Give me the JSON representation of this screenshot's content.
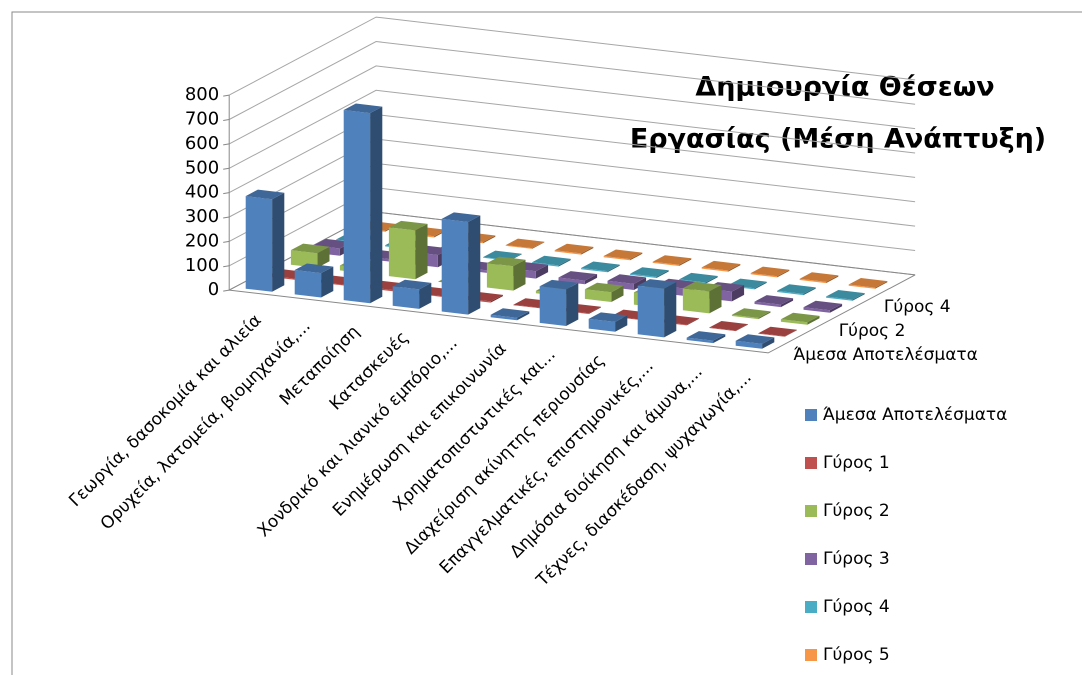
{
  "chart_data": {
    "type": "bar3d",
    "title": [
      "Δημιουργία Θέσεων",
      "Εργασίας (Μέση Ανάπτυξη)"
    ],
    "categories": [
      "Γεωργία, δασοκομία και αλιεία",
      "Ορυχεία, λατομεία, βιομηχανία,...",
      "Μεταποίηση",
      "Κατασκευές",
      "Χονδρικό και λιανικό εμπόριο,...",
      "Ενημέρωση και επικοινωνία",
      "Χρηματοπιστωτικές και...",
      "Διαχείριση ακίνητης περιουσίας",
      "Επαγγελματικές, επιστημονικές,...",
      "Δημόσια διοίκηση και άμυνα,...",
      "Τέχνες, διασκέδαση, ψυχαγωγία,..."
    ],
    "series": [
      {
        "name": "Άμεσα Αποτελέσματα",
        "color": "#4f81bd",
        "values": [
          380,
          100,
          780,
          80,
          380,
          10,
          150,
          40,
          200,
          10,
          20
        ]
      },
      {
        "name": "Γύρος 1",
        "color": "#c0504d",
        "values": [
          5,
          3,
          5,
          3,
          5,
          2,
          3,
          2,
          3,
          2,
          2
        ]
      },
      {
        "name": "Γύρος 2",
        "color": "#9bbb59",
        "values": [
          60,
          20,
          200,
          0,
          100,
          10,
          40,
          50,
          90,
          5,
          10
        ]
      },
      {
        "name": "Γύρος 3",
        "color": "#8064a2",
        "values": [
          30,
          10,
          50,
          10,
          30,
          15,
          25,
          30,
          40,
          10,
          10
        ]
      },
      {
        "name": "Γύρος 4",
        "color": "#4bacc6",
        "values": [
          5,
          5,
          5,
          3,
          5,
          5,
          5,
          5,
          5,
          5,
          5
        ]
      },
      {
        "name": "Γύρος 5",
        "color": "#f79646",
        "values": [
          5,
          5,
          5,
          3,
          5,
          5,
          5,
          5,
          5,
          5,
          5
        ]
      }
    ],
    "depth_label_series": [
      0,
      2,
      4
    ],
    "ylim": [
      0,
      800
    ],
    "yticks": [
      0,
      100,
      200,
      300,
      400,
      500,
      600,
      700,
      800
    ],
    "grid": true,
    "legend": "right"
  }
}
